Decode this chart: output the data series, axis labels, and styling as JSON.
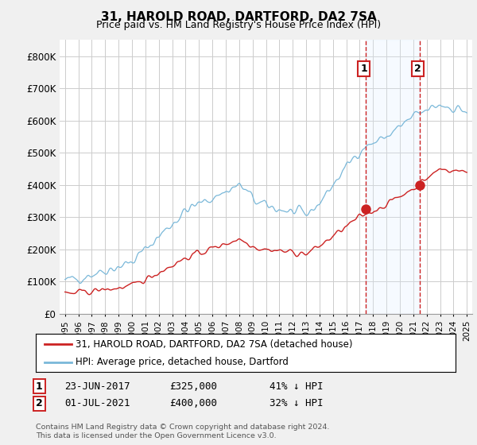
{
  "title": "31, HAROLD ROAD, DARTFORD, DA2 7SA",
  "subtitle": "Price paid vs. HM Land Registry's House Price Index (HPI)",
  "hpi_label": "HPI: Average price, detached house, Dartford",
  "property_label": "31, HAROLD ROAD, DARTFORD, DA2 7SA (detached house)",
  "footnote": "Contains HM Land Registry data © Crown copyright and database right 2024.\nThis data is licensed under the Open Government Licence v3.0.",
  "annotation1": {
    "num": "1",
    "date": "23-JUN-2017",
    "price": "£325,000",
    "pct": "41% ↓ HPI"
  },
  "annotation2": {
    "num": "2",
    "date": "01-JUL-2021",
    "price": "£400,000",
    "pct": "32% ↓ HPI"
  },
  "ylim": [
    0,
    850000
  ],
  "yticks": [
    0,
    100000,
    200000,
    300000,
    400000,
    500000,
    600000,
    700000,
    800000
  ],
  "ytick_labels": [
    "£0",
    "£100K",
    "£200K",
    "£300K",
    "£400K",
    "£500K",
    "£600K",
    "£700K",
    "£800K"
  ],
  "hpi_color": "#7ab8d9",
  "property_color": "#cc2222",
  "vline_color": "#cc2222",
  "marker_color": "#cc2222",
  "shade_color": "#ddeeff",
  "bg_color": "#f0f0f0",
  "plot_bg": "#ffffff",
  "sale1_x": 2017.47,
  "sale1_y": 325000,
  "sale2_x": 2021.5,
  "sale2_y": 400000,
  "xlim_left": 1994.6,
  "xlim_right": 2025.4
}
